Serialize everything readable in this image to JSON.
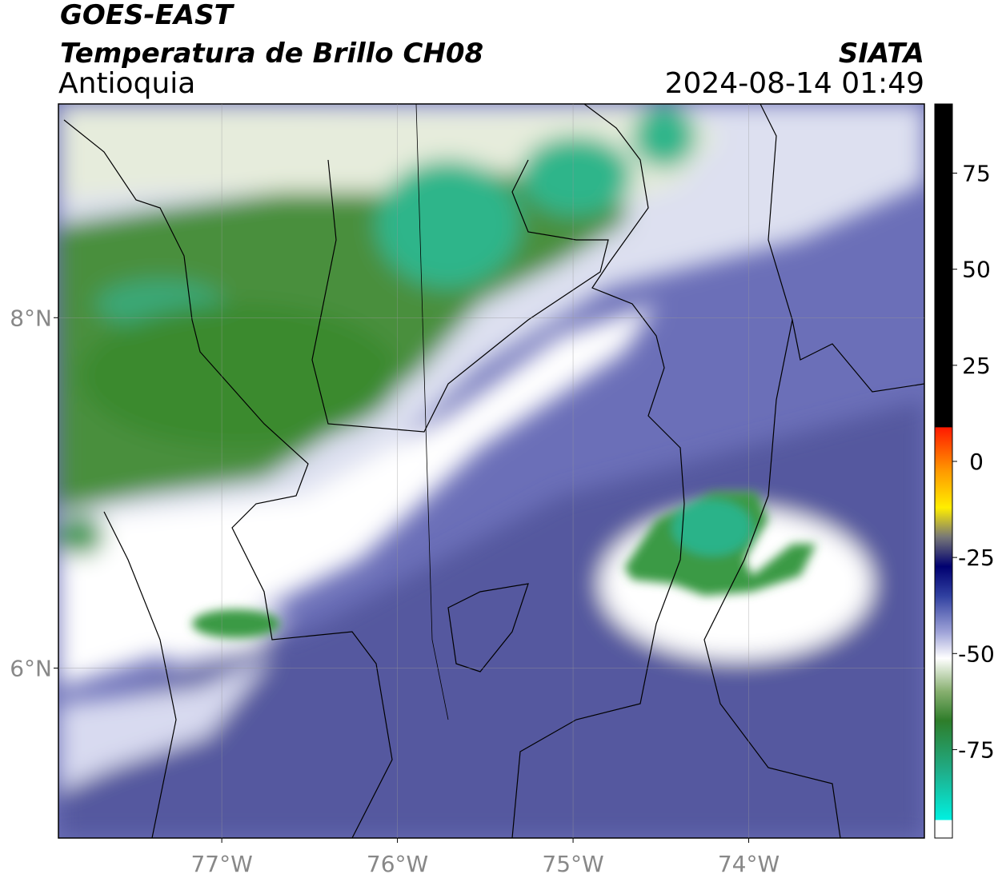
{
  "header": {
    "title": "GOES-EAST",
    "subtitle": "Temperatura de Brillo CH08",
    "region": "Antioquia",
    "source": "SIATA",
    "datetime": "2024-08-14 01:49"
  },
  "map": {
    "xlim": [
      -77.93,
      -73.0
    ],
    "ylim": [
      5.03,
      9.22
    ],
    "xticks": [
      {
        "value": -77,
        "label": "77°W"
      },
      {
        "value": -76,
        "label": "76°W"
      },
      {
        "value": -75,
        "label": "75°W"
      },
      {
        "value": -74,
        "label": "74°W"
      }
    ],
    "yticks": [
      {
        "value": 6,
        "label": "6°N"
      },
      {
        "value": 8,
        "label": "8°N"
      }
    ],
    "grid": true
  },
  "colorbar": {
    "lim": [
      -98,
      93
    ],
    "ticks": [
      -75,
      -50,
      -25,
      0,
      25,
      50,
      75
    ]
  }
}
